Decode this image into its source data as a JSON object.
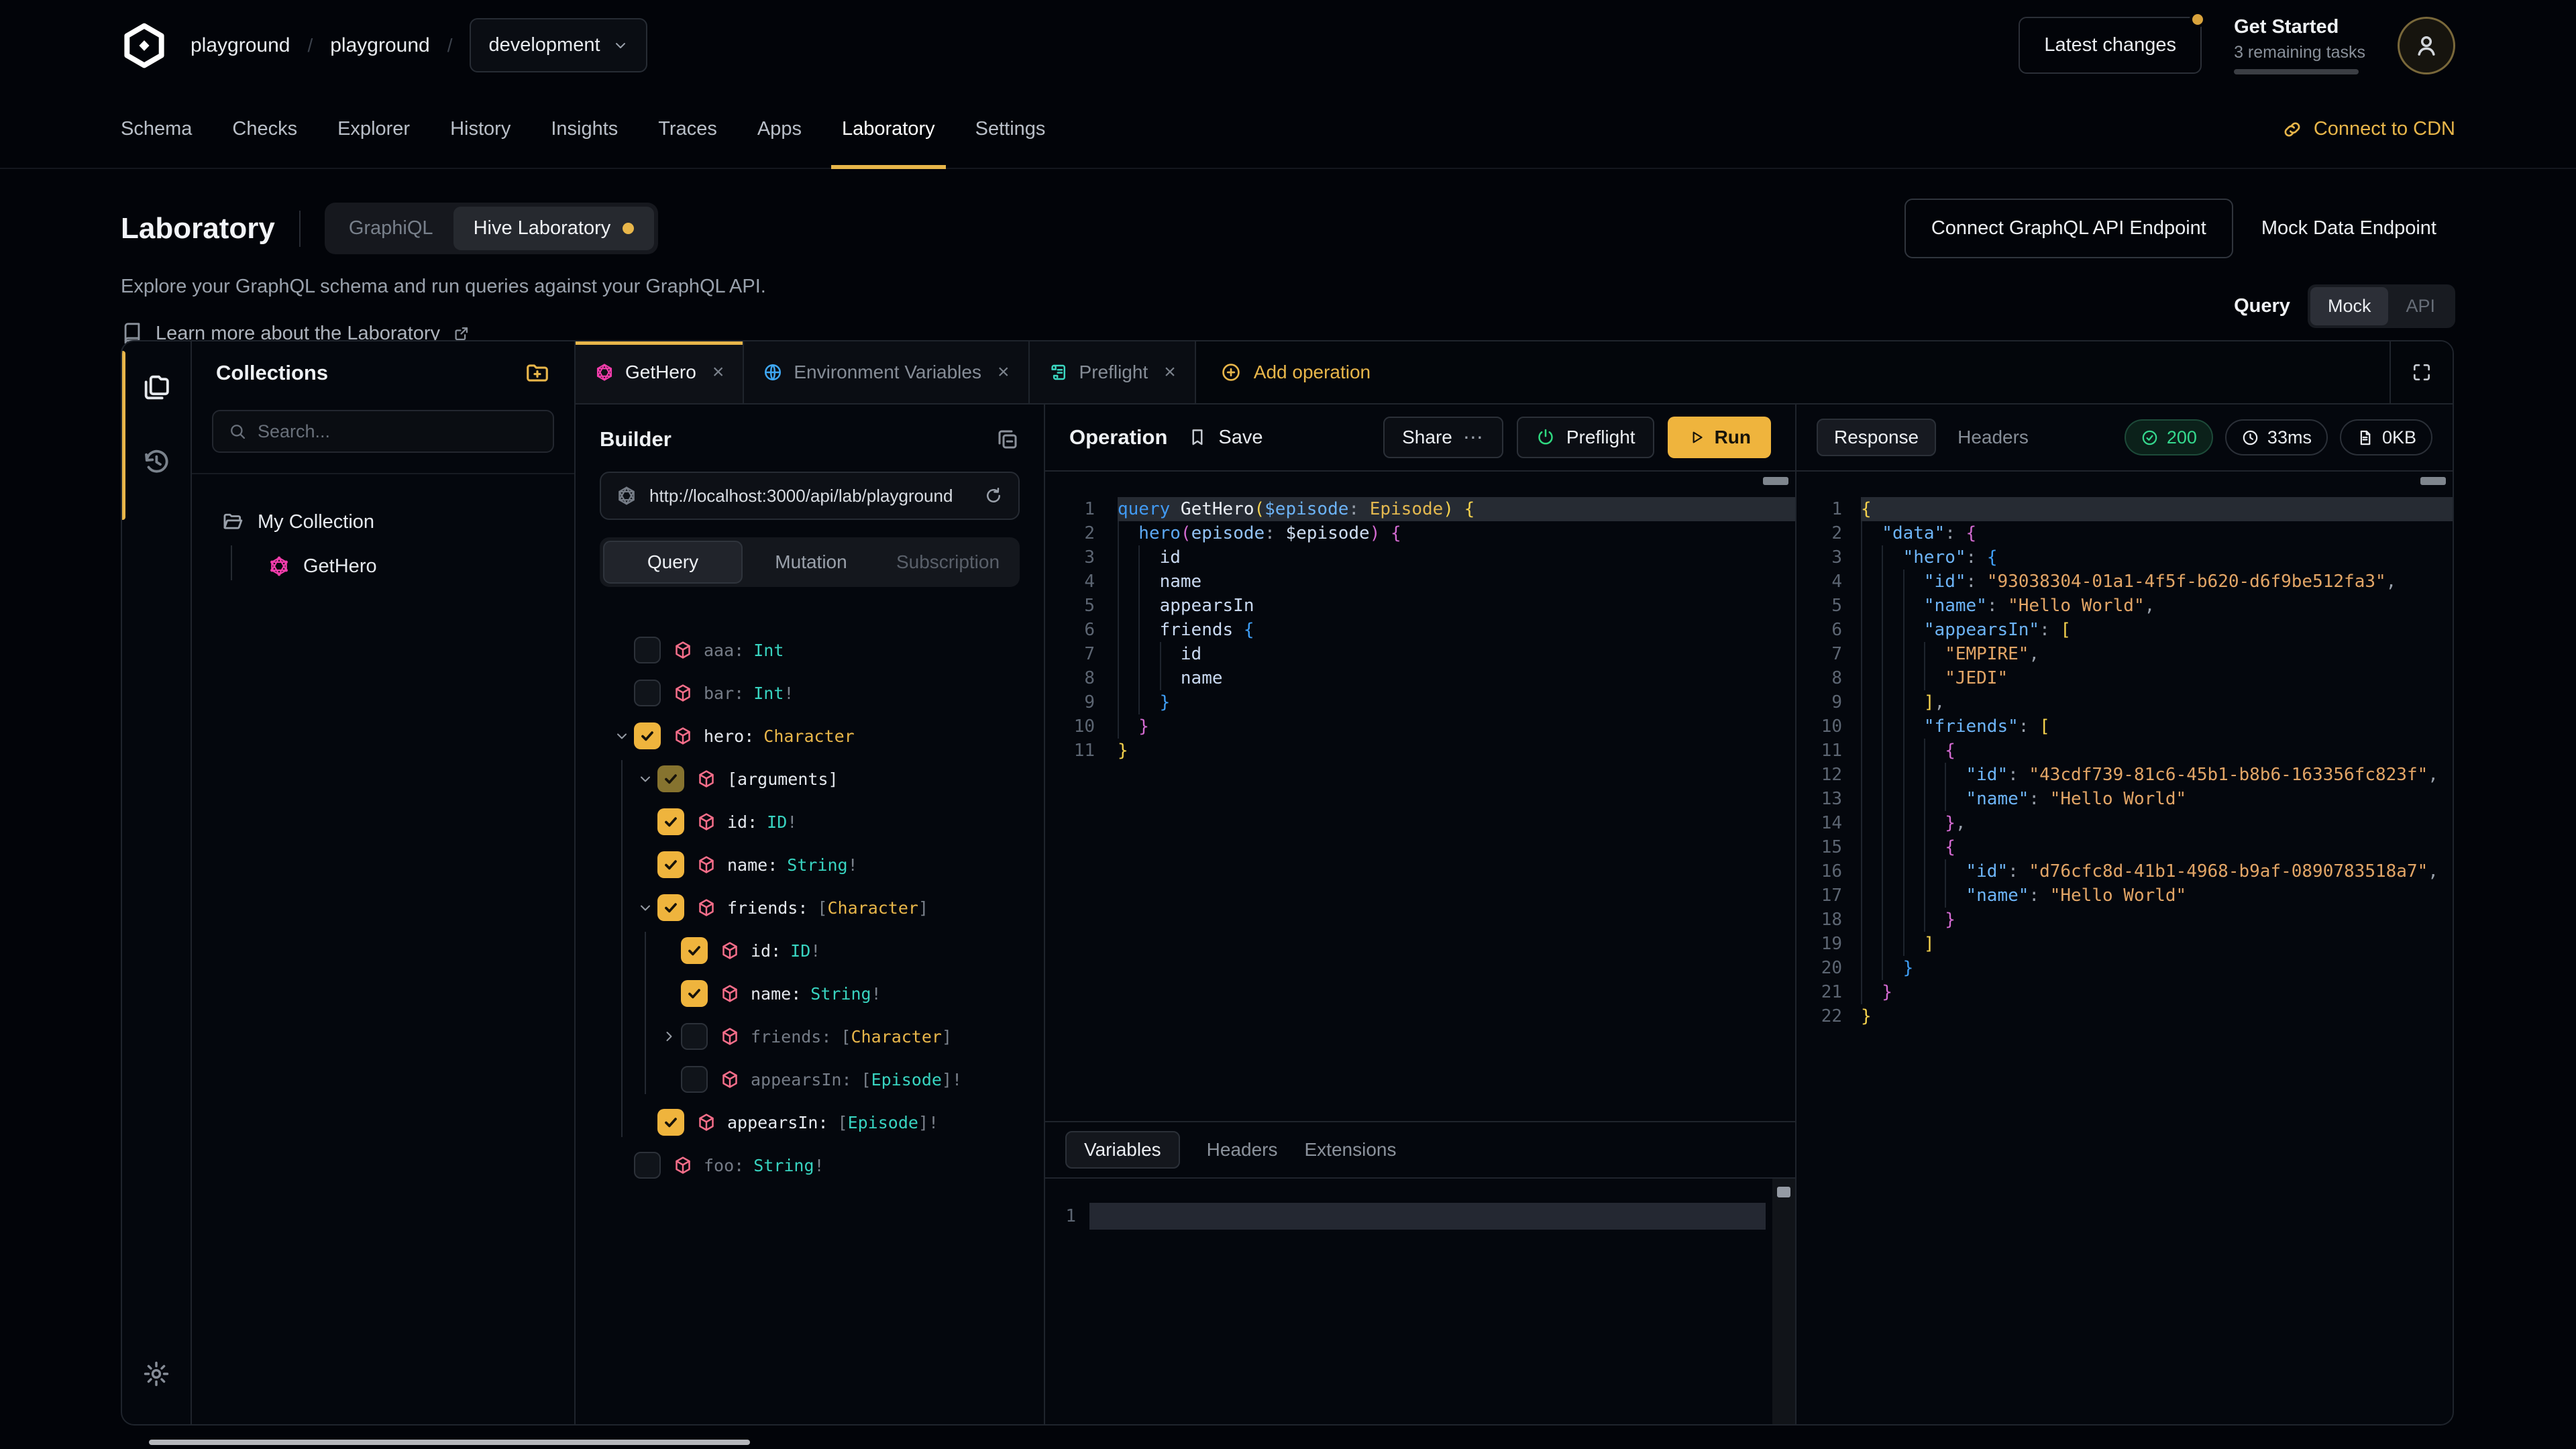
{
  "header": {
    "breadcrumb": [
      "playground",
      "playground"
    ],
    "environment": "development",
    "latest_changes": "Latest changes",
    "get_started": {
      "title": "Get Started",
      "subtitle": "3 remaining tasks",
      "progress_pct": 52
    }
  },
  "nav": {
    "items": [
      "Schema",
      "Checks",
      "Explorer",
      "History",
      "Insights",
      "Traces",
      "Apps",
      "Laboratory",
      "Settings"
    ],
    "active": "Laboratory",
    "cdn_link": "Connect to CDN"
  },
  "hero": {
    "title": "Laboratory",
    "mode_options": [
      "GraphiQL",
      "Hive Laboratory"
    ],
    "active_mode": "Hive Laboratory",
    "description": "Explore your GraphQL schema and run queries against your GraphQL API.",
    "learn_more": "Learn more about the Laboratory",
    "connect_endpoint_button": "Connect GraphQL API Endpoint",
    "mock_endpoint_button": "Mock Data Endpoint",
    "query_label": "Query",
    "endpoint_options": [
      "Mock",
      "API"
    ],
    "active_endpoint": "Mock"
  },
  "collections": {
    "title": "Collections",
    "search_placeholder": "Search...",
    "folder": "My Collection",
    "operations": [
      "GetHero"
    ]
  },
  "workspace": {
    "tabs": [
      {
        "label": "GetHero",
        "icon": "graphql",
        "active": true
      },
      {
        "label": "Environment Variables",
        "icon": "globe",
        "active": false
      },
      {
        "label": "Preflight",
        "icon": "scroll",
        "active": false
      }
    ],
    "add_operation": "Add operation"
  },
  "builder": {
    "title": "Builder",
    "endpoint_url": "http://localhost:3000/api/lab/playground",
    "operation_types": [
      "Query",
      "Mutation",
      "Subscription"
    ],
    "active_type": "Query",
    "fields": [
      {
        "label": "aaa:",
        "type": [
          [
            "Int",
            "sc"
          ]
        ],
        "state": "off",
        "chev": "",
        "indent": 0
      },
      {
        "label": "bar:",
        "type": [
          [
            "Int",
            "sc"
          ],
          [
            "!",
            "pn"
          ]
        ],
        "state": "off",
        "chev": "",
        "indent": 0
      },
      {
        "label": "hero:",
        "type": [
          [
            "Character",
            "ob"
          ]
        ],
        "state": "on",
        "chev": "down",
        "indent": 0
      },
      {
        "label": "[arguments]",
        "type": [],
        "state": "dim",
        "chev": "down",
        "indent": 1
      },
      {
        "label": "id:",
        "type": [
          [
            "ID",
            "sc"
          ],
          [
            "!",
            "pn"
          ]
        ],
        "state": "on",
        "chev": "",
        "indent": 1
      },
      {
        "label": "name:",
        "type": [
          [
            "String",
            "sc"
          ],
          [
            "!",
            "pn"
          ]
        ],
        "state": "on",
        "chev": "",
        "indent": 1
      },
      {
        "label": "friends:",
        "type": [
          [
            "[",
            "pn"
          ],
          [
            "Character",
            "ob"
          ],
          [
            "]",
            "pn"
          ]
        ],
        "state": "on",
        "chev": "down",
        "indent": 1
      },
      {
        "label": "id:",
        "type": [
          [
            "ID",
            "sc"
          ],
          [
            "!",
            "pn"
          ]
        ],
        "state": "on",
        "chev": "",
        "indent": 2
      },
      {
        "label": "name:",
        "type": [
          [
            "String",
            "sc"
          ],
          [
            "!",
            "pn"
          ]
        ],
        "state": "on",
        "chev": "",
        "indent": 2
      },
      {
        "label": "friends:",
        "type": [
          [
            "[",
            "pn"
          ],
          [
            "Character",
            "ob"
          ],
          [
            "]",
            "pn"
          ]
        ],
        "state": "off",
        "chev": "right",
        "indent": 2
      },
      {
        "label": "appearsIn:",
        "type": [
          [
            "[",
            "pn"
          ],
          [
            "Episode",
            "sc"
          ],
          [
            "]",
            "pn"
          ],
          [
            "!",
            "pn"
          ]
        ],
        "state": "off",
        "chev": "",
        "indent": 2
      },
      {
        "label": "appearsIn:",
        "type": [
          [
            "[",
            "pn"
          ],
          [
            "Episode",
            "sc"
          ],
          [
            "]",
            "pn"
          ],
          [
            "!",
            "pn"
          ]
        ],
        "state": "on",
        "chev": "",
        "indent": 1
      },
      {
        "label": "foo:",
        "type": [
          [
            "String",
            "sc"
          ],
          [
            "!",
            "pn"
          ]
        ],
        "state": "off",
        "chev": "",
        "indent": 0
      }
    ]
  },
  "operation": {
    "title": "Operation",
    "save_label": "Save",
    "share_label": "Share",
    "preflight_label": "Preflight",
    "run_label": "Run",
    "editor_lines": [
      {
        "n": 1,
        "hl": true,
        "ind": 0,
        "toks": [
          [
            "query ",
            "kw"
          ],
          [
            "GetHero",
            "nm"
          ],
          [
            "(",
            "b1"
          ],
          [
            "$episode",
            "vr"
          ],
          [
            ": ",
            "pn"
          ],
          [
            "Episode",
            "ty"
          ],
          [
            ") {",
            "b1"
          ]
        ]
      },
      {
        "n": 2,
        "ind": 1,
        "toks": [
          [
            "hero",
            "pr"
          ],
          [
            "(",
            "b2"
          ],
          [
            "episode",
            "at"
          ],
          [
            ": ",
            "pn"
          ],
          [
            "$episode",
            "vb"
          ],
          [
            ") {",
            "b2"
          ]
        ]
      },
      {
        "n": 3,
        "ind": 2,
        "toks": [
          [
            "id",
            "fl"
          ]
        ]
      },
      {
        "n": 4,
        "ind": 2,
        "toks": [
          [
            "name",
            "fl"
          ]
        ]
      },
      {
        "n": 5,
        "ind": 2,
        "toks": [
          [
            "appearsIn",
            "fl"
          ]
        ]
      },
      {
        "n": 6,
        "ind": 2,
        "toks": [
          [
            "friends ",
            "fl"
          ],
          [
            "{",
            "b3"
          ]
        ]
      },
      {
        "n": 7,
        "ind": 3,
        "toks": [
          [
            "id",
            "fl"
          ]
        ]
      },
      {
        "n": 8,
        "ind": 3,
        "toks": [
          [
            "name",
            "fl"
          ]
        ]
      },
      {
        "n": 9,
        "ind": 2,
        "toks": [
          [
            "}",
            "b3"
          ]
        ]
      },
      {
        "n": 10,
        "ind": 1,
        "toks": [
          [
            "}",
            "b2"
          ]
        ]
      },
      {
        "n": 11,
        "ind": 0,
        "toks": [
          [
            "}",
            "b1"
          ]
        ]
      }
    ],
    "bottom_tabs": [
      "Variables",
      "Headers",
      "Extensions"
    ],
    "active_bottom_tab": "Variables",
    "variables_line_number": "1"
  },
  "response": {
    "tabs": [
      "Response",
      "Headers"
    ],
    "active_tab": "Response",
    "status_code": "200",
    "duration": "33ms",
    "size": "0KB",
    "editor_lines": [
      {
        "n": 1,
        "hl": true,
        "ind": 0,
        "toks": [
          [
            "{",
            "b1"
          ]
        ]
      },
      {
        "n": 2,
        "ind": 1,
        "toks": [
          [
            "\"data\"",
            "ky"
          ],
          [
            ": ",
            "pn"
          ],
          [
            "{",
            "b2"
          ]
        ]
      },
      {
        "n": 3,
        "ind": 2,
        "toks": [
          [
            "\"hero\"",
            "ky"
          ],
          [
            ": ",
            "pn"
          ],
          [
            "{",
            "b3"
          ]
        ]
      },
      {
        "n": 4,
        "ind": 3,
        "toks": [
          [
            "\"id\"",
            "ky"
          ],
          [
            ": ",
            "pn"
          ],
          [
            "\"93038304-01a1-4f5f-b620-d6f9be512fa3\"",
            "st"
          ],
          [
            ",",
            "pn"
          ]
        ]
      },
      {
        "n": 5,
        "ind": 3,
        "toks": [
          [
            "\"name\"",
            "ky"
          ],
          [
            ": ",
            "pn"
          ],
          [
            "\"Hello World\"",
            "st"
          ],
          [
            ",",
            "pn"
          ]
        ]
      },
      {
        "n": 6,
        "ind": 3,
        "toks": [
          [
            "\"appearsIn\"",
            "ky"
          ],
          [
            ": ",
            "pn"
          ],
          [
            "[",
            "b1"
          ]
        ]
      },
      {
        "n": 7,
        "ind": 4,
        "toks": [
          [
            "\"EMPIRE\"",
            "st"
          ],
          [
            ",",
            "pn"
          ]
        ]
      },
      {
        "n": 8,
        "ind": 4,
        "toks": [
          [
            "\"JEDI\"",
            "st"
          ]
        ]
      },
      {
        "n": 9,
        "ind": 3,
        "toks": [
          [
            "]",
            "b1"
          ],
          [
            ",",
            "pn"
          ]
        ]
      },
      {
        "n": 10,
        "ind": 3,
        "toks": [
          [
            "\"friends\"",
            "ky"
          ],
          [
            ": ",
            "pn"
          ],
          [
            "[",
            "b1"
          ]
        ]
      },
      {
        "n": 11,
        "ind": 4,
        "toks": [
          [
            "{",
            "b2"
          ]
        ]
      },
      {
        "n": 12,
        "ind": 5,
        "toks": [
          [
            "\"id\"",
            "ky"
          ],
          [
            ": ",
            "pn"
          ],
          [
            "\"43cdf739-81c6-45b1-b8b6-163356fc823f\"",
            "st"
          ],
          [
            ",",
            "pn"
          ]
        ]
      },
      {
        "n": 13,
        "ind": 5,
        "toks": [
          [
            "\"name\"",
            "ky"
          ],
          [
            ": ",
            "pn"
          ],
          [
            "\"Hello World\"",
            "st"
          ]
        ]
      },
      {
        "n": 14,
        "ind": 4,
        "toks": [
          [
            "}",
            "b2"
          ],
          [
            ",",
            "pn"
          ]
        ]
      },
      {
        "n": 15,
        "ind": 4,
        "toks": [
          [
            "{",
            "b2"
          ]
        ]
      },
      {
        "n": 16,
        "ind": 5,
        "toks": [
          [
            "\"id\"",
            "ky"
          ],
          [
            ": ",
            "pn"
          ],
          [
            "\"d76cfc8d-41b1-4968-b9af-0890783518a7\"",
            "st"
          ],
          [
            ",",
            "pn"
          ]
        ]
      },
      {
        "n": 17,
        "ind": 5,
        "toks": [
          [
            "\"name\"",
            "ky"
          ],
          [
            ": ",
            "pn"
          ],
          [
            "\"Hello World\"",
            "st"
          ]
        ]
      },
      {
        "n": 18,
        "ind": 4,
        "toks": [
          [
            "}",
            "b2"
          ]
        ]
      },
      {
        "n": 19,
        "ind": 3,
        "toks": [
          [
            "]",
            "b1"
          ]
        ]
      },
      {
        "n": 20,
        "ind": 2,
        "toks": [
          [
            "}",
            "b3"
          ]
        ]
      },
      {
        "n": 21,
        "ind": 1,
        "toks": [
          [
            "}",
            "b2"
          ]
        ]
      },
      {
        "n": 22,
        "ind": 0,
        "toks": [
          [
            "}",
            "b1"
          ]
        ]
      }
    ]
  },
  "colors": {
    "accent_yellow": "#e8b64a",
    "graphql_pink": "#f23dab",
    "cube_rose": "#f76e8a",
    "scalar_teal": "#38d3c0",
    "status_green": "#35d98e"
  }
}
